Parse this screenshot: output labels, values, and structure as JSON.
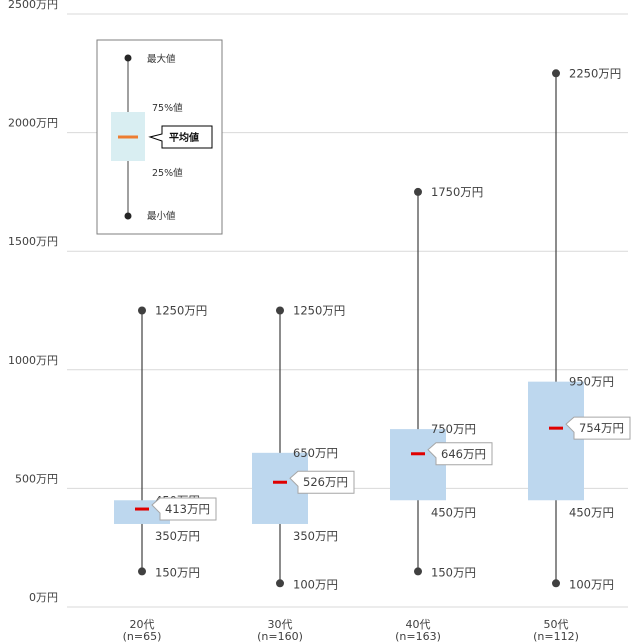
{
  "chart_data": {
    "type": "box",
    "y_axis": {
      "ticks": [
        0,
        500,
        1000,
        1500,
        2000,
        2500
      ],
      "tick_labels": [
        "0万円",
        "500万円",
        "1000万円",
        "1500万円",
        "2000万円",
        "2500万円"
      ],
      "ylim": [
        0,
        2500
      ],
      "grid": true
    },
    "groups": [
      {
        "label": "20代",
        "n_label": "(n=65)",
        "min": 150,
        "q1": 350,
        "mean": 413,
        "q3": 450,
        "max": 1250,
        "min_label": "150万円",
        "q1_label": "350万円",
        "mean_label": "413万円",
        "q3_label": "450万円",
        "max_label": "1250万円"
      },
      {
        "label": "30代",
        "n_label": "(n=160)",
        "min": 100,
        "q1": 350,
        "mean": 526,
        "q3": 650,
        "max": 1250,
        "min_label": "100万円",
        "q1_label": "350万円",
        "mean_label": "526万円",
        "q3_label": "650万円",
        "max_label": "1250万円"
      },
      {
        "label": "40代",
        "n_label": "(n=163)",
        "min": 150,
        "q1": 450,
        "mean": 646,
        "q3": 750,
        "max": 1750,
        "min_label": "150万円",
        "q1_label": "450万円",
        "mean_label": "646万円",
        "q3_label": "750万円",
        "max_label": "1750万円"
      },
      {
        "label": "50代",
        "n_label": "(n=112)",
        "min": 100,
        "q1": 450,
        "mean": 754,
        "q3": 950,
        "max": 2250,
        "min_label": "100万円",
        "q1_label": "450万円",
        "mean_label": "754万円",
        "q3_label": "950万円",
        "max_label": "2250万円"
      }
    ],
    "legend": {
      "position": "top-left",
      "max_label": "最大値",
      "q3_label": "75%値",
      "mean_label": "平均値",
      "q1_label": "25%値",
      "min_label": "最小値"
    }
  },
  "colors": {
    "box": "#bdd7ee",
    "legend_box": "#d9eef2",
    "whisker": "#404040",
    "mean": "#e00000",
    "legend_mean": "#ed7d31",
    "grid": "#d9d9d9"
  }
}
